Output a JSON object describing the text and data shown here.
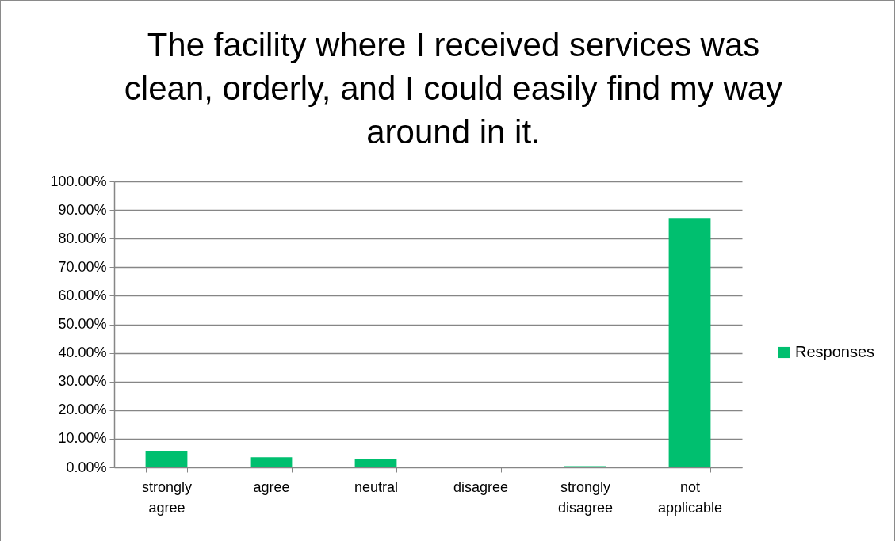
{
  "chart_data": {
    "type": "bar",
    "title": "The facility where I received services was clean, orderly, and I could easily find my way around in it.",
    "categories": [
      "strongly agree",
      "agree",
      "neutral",
      "disagree",
      "strongly disagree",
      "not applicable"
    ],
    "series": [
      {
        "name": "Responses",
        "color": "#00bf6f",
        "values": [
          5.6,
          3.5,
          3.0,
          0,
          0.4,
          87.2
        ]
      }
    ],
    "ylim": [
      0,
      100
    ],
    "yticks": [
      {
        "value": 0,
        "label": "0.00%"
      },
      {
        "value": 10,
        "label": "10.00%"
      },
      {
        "value": 20,
        "label": "20.00%"
      },
      {
        "value": 30,
        "label": "30.00%"
      },
      {
        "value": 40,
        "label": "40.00%"
      },
      {
        "value": 50,
        "label": "50.00%"
      },
      {
        "value": 60,
        "label": "60.00%"
      },
      {
        "value": 70,
        "label": "70.00%"
      },
      {
        "value": 80,
        "label": "80.00%"
      },
      {
        "value": 90,
        "label": "90.00%"
      },
      {
        "value": 100,
        "label": "100.00%"
      }
    ],
    "grid": "y",
    "legend": "right"
  }
}
